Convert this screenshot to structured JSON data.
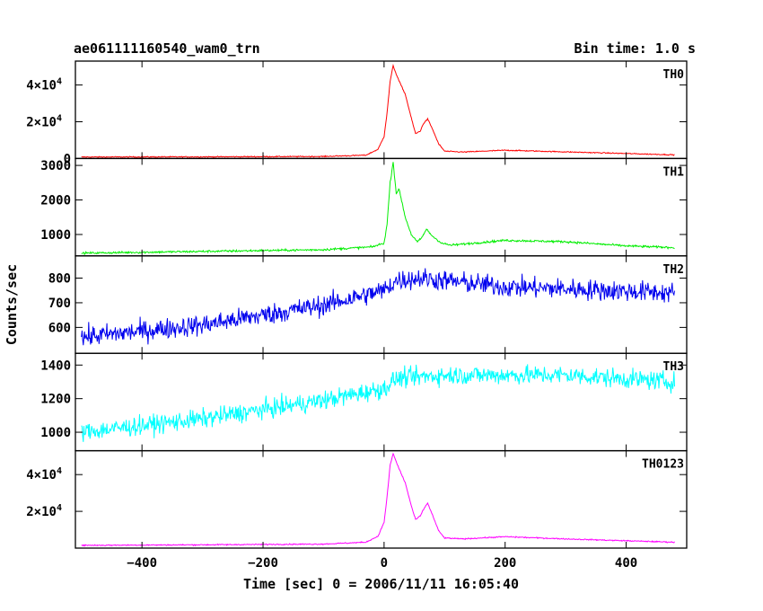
{
  "header": {
    "title": "ae061111160540_wam0_trn",
    "bin_time": "Bin time: 1.0 s"
  },
  "chart_data": {
    "type": "line",
    "x_label": "Time [sec] 0 = 2006/11/11 16:05:40",
    "y_label": "Counts/sec",
    "x_range": [
      -510,
      500
    ],
    "x_ticks": [
      -400,
      -200,
      0,
      200,
      400
    ],
    "grid": false,
    "panels": [
      {
        "name": "TH0",
        "color": "#ff0000",
        "y_range": [
          0,
          53000
        ],
        "y_ticks": [
          {
            "v": 0,
            "base": "0"
          },
          {
            "v": 20000,
            "base": "2×10",
            "exp": "4"
          },
          {
            "v": 40000,
            "base": "4×10",
            "exp": "4"
          }
        ],
        "noise": 200,
        "points": [
          [
            -500,
            800
          ],
          [
            -300,
            900
          ],
          [
            -100,
            1100
          ],
          [
            -30,
            1800
          ],
          [
            -10,
            5000
          ],
          [
            0,
            12000
          ],
          [
            5,
            25000
          ],
          [
            10,
            42000
          ],
          [
            15,
            50500
          ],
          [
            20,
            46000
          ],
          [
            25,
            42000
          ],
          [
            35,
            35000
          ],
          [
            45,
            22000
          ],
          [
            52,
            13500
          ],
          [
            60,
            15000
          ],
          [
            65,
            19000
          ],
          [
            72,
            21500
          ],
          [
            80,
            16000
          ],
          [
            90,
            8000
          ],
          [
            100,
            4000
          ],
          [
            130,
            3500
          ],
          [
            200,
            4500
          ],
          [
            300,
            3600
          ],
          [
            400,
            2700
          ],
          [
            480,
            2000
          ]
        ]
      },
      {
        "name": "TH1",
        "color": "#00ee00",
        "y_range": [
          380,
          3200
        ],
        "y_ticks": [
          {
            "v": 1000,
            "base": "1000"
          },
          {
            "v": 2000,
            "base": "2000"
          },
          {
            "v": 3000,
            "base": "3000"
          }
        ],
        "noise": 22,
        "points": [
          [
            -500,
            460
          ],
          [
            -300,
            510
          ],
          [
            -100,
            560
          ],
          [
            -20,
            640
          ],
          [
            0,
            750
          ],
          [
            5,
            1300
          ],
          [
            10,
            2500
          ],
          [
            15,
            3100
          ],
          [
            20,
            2200
          ],
          [
            25,
            2300
          ],
          [
            35,
            1500
          ],
          [
            45,
            1000
          ],
          [
            55,
            780
          ],
          [
            62,
            900
          ],
          [
            70,
            1150
          ],
          [
            80,
            950
          ],
          [
            95,
            750
          ],
          [
            110,
            690
          ],
          [
            200,
            830
          ],
          [
            300,
            790
          ],
          [
            400,
            670
          ],
          [
            480,
            620
          ]
        ]
      },
      {
        "name": "TH2",
        "color": "#0000ee",
        "y_range": [
          495,
          890
        ],
        "y_ticks": [
          {
            "v": 600,
            "base": "600"
          },
          {
            "v": 700,
            "base": "700"
          },
          {
            "v": 800,
            "base": "800"
          }
        ],
        "noise": 30,
        "points": [
          [
            -500,
            560
          ],
          [
            -300,
            610
          ],
          [
            -100,
            690
          ],
          [
            0,
            750
          ],
          [
            20,
            790
          ],
          [
            60,
            800
          ],
          [
            200,
            765
          ],
          [
            480,
            740
          ]
        ]
      },
      {
        "name": "TH3",
        "color": "#00ffff",
        "y_range": [
          890,
          1470
        ],
        "y_ticks": [
          {
            "v": 1000,
            "base": "1000"
          },
          {
            "v": 1200,
            "base": "1200"
          },
          {
            "v": 1400,
            "base": "1400"
          }
        ],
        "noise": 40,
        "points": [
          [
            -500,
            1000
          ],
          [
            -300,
            1080
          ],
          [
            -100,
            1190
          ],
          [
            0,
            1260
          ],
          [
            20,
            1320
          ],
          [
            100,
            1340
          ],
          [
            300,
            1340
          ],
          [
            480,
            1300
          ]
        ]
      },
      {
        "name": "TH0123",
        "color": "#ff00ff",
        "y_range": [
          0,
          53000
        ],
        "y_ticks": [
          {
            "v": 20000,
            "base": "2×10",
            "exp": "4"
          },
          {
            "v": 40000,
            "base": "4×10",
            "exp": "4"
          }
        ],
        "noise": 220,
        "points": [
          [
            -500,
            1500
          ],
          [
            -300,
            1800
          ],
          [
            -100,
            2200
          ],
          [
            -30,
            3200
          ],
          [
            -10,
            6500
          ],
          [
            0,
            14000
          ],
          [
            5,
            28000
          ],
          [
            10,
            45000
          ],
          [
            15,
            51500
          ],
          [
            20,
            47000
          ],
          [
            25,
            43000
          ],
          [
            35,
            35500
          ],
          [
            45,
            23000
          ],
          [
            52,
            15500
          ],
          [
            60,
            17500
          ],
          [
            65,
            21000
          ],
          [
            72,
            24500
          ],
          [
            80,
            18000
          ],
          [
            90,
            9500
          ],
          [
            100,
            5500
          ],
          [
            130,
            5000
          ],
          [
            200,
            6200
          ],
          [
            300,
            5000
          ],
          [
            400,
            4000
          ],
          [
            480,
            3200
          ]
        ]
      }
    ]
  }
}
